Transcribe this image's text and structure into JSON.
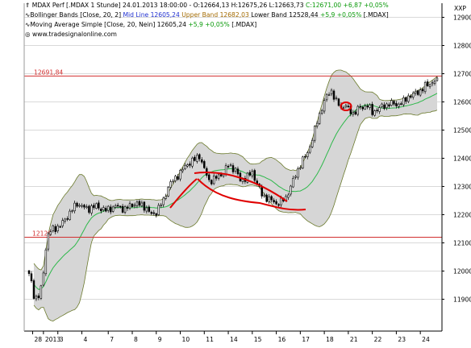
{
  "legend": {
    "line1": "MDAX Perf [.MDAX 1 Stunde] 24.01.2013 18:00:00 - O:12664,13 H:12675,26 L:12663,73 ",
    "line1_change": "C:12671,00 +6,87 +0,05%",
    "bb_prefix": "Bollinger Bands [Close, 20, 2] ",
    "bb_mid": "Mid Line 12605,24 ",
    "bb_upper": "Upper Band 12682,03 ",
    "bb_lower": "Lower Band 12528,44 ",
    "bb_change": "+5,9 +0,05% ",
    "bb_suffix": "[.MDAX]",
    "ma_prefix": "Moving Average Simple [Close, 20, Nein] 12605,24 ",
    "ma_change": "+5,9 +0,05% ",
    "ma_suffix": "[.MDAX]",
    "website": "www.tradesignalonline.com"
  },
  "axis_unit": "XXP",
  "colors": {
    "up_candle": "#ffffff",
    "down_candle": "#000000",
    "band_fill": "#d6d6d6",
    "band_line": "#6b7a2c",
    "ma_line": "#2db84a",
    "hline": "#d23030",
    "annotation": "#e00000",
    "grid": "#d9d9d9"
  },
  "chart_data": {
    "type": "candlestick",
    "y_ticks": [
      11900,
      12000,
      12100,
      12200,
      12300,
      12400,
      12500,
      12600,
      12700,
      12800,
      12900
    ],
    "ylim": [
      11787,
      12950
    ],
    "x_ticks": [
      {
        "label": "28",
        "pos": 1.5
      },
      {
        "label": "2013",
        "pos": 6
      },
      {
        "label": "3",
        "pos": 12
      },
      {
        "label": "4",
        "pos": 22
      },
      {
        "label": "7",
        "pos": 33
      },
      {
        "label": "8",
        "pos": 43
      },
      {
        "label": "9",
        "pos": 53
      },
      {
        "label": "10",
        "pos": 63
      },
      {
        "label": "11",
        "pos": 73
      },
      {
        "label": "14",
        "pos": 83
      },
      {
        "label": "15",
        "pos": 93
      },
      {
        "label": "16",
        "pos": 103
      },
      {
        "label": "17",
        "pos": 113
      },
      {
        "label": "18",
        "pos": 123
      },
      {
        "label": "21",
        "pos": 133
      },
      {
        "label": "22",
        "pos": 143
      },
      {
        "label": "23",
        "pos": 153
      },
      {
        "label": "24",
        "pos": 163
      }
    ],
    "bar_count": 171,
    "horizontal_lines": [
      {
        "label": "12691,84",
        "value": 12691.84
      },
      {
        "label": "12120",
        "value": 12120
      }
    ],
    "anchors": [
      [
        0,
        11985
      ],
      [
        1,
        11960
      ],
      [
        2,
        11915
      ],
      [
        3,
        11905
      ],
      [
        4,
        11910
      ],
      [
        5,
        11935
      ],
      [
        6,
        12000
      ],
      [
        7,
        12080
      ],
      [
        8,
        12130
      ],
      [
        10,
        12150
      ],
      [
        13,
        12160
      ],
      [
        16,
        12195
      ],
      [
        20,
        12240
      ],
      [
        24,
        12220
      ],
      [
        28,
        12230
      ],
      [
        32,
        12215
      ],
      [
        36,
        12230
      ],
      [
        40,
        12220
      ],
      [
        44,
        12240
      ],
      [
        48,
        12230
      ],
      [
        51,
        12200
      ],
      [
        53,
        12210
      ],
      [
        56,
        12250
      ],
      [
        58,
        12300
      ],
      [
        61,
        12330
      ],
      [
        64,
        12360
      ],
      [
        66,
        12380
      ],
      [
        69,
        12395
      ],
      [
        71,
        12410
      ],
      [
        73,
        12360
      ],
      [
        75,
        12320
      ],
      [
        78,
        12330
      ],
      [
        81,
        12350
      ],
      [
        83,
        12375
      ],
      [
        86,
        12360
      ],
      [
        88,
        12320
      ],
      [
        91,
        12335
      ],
      [
        93,
        12350
      ],
      [
        95,
        12310
      ],
      [
        97,
        12270
      ],
      [
        100,
        12255
      ],
      [
        103,
        12240
      ],
      [
        105,
        12245
      ],
      [
        107,
        12260
      ],
      [
        109,
        12300
      ],
      [
        111,
        12340
      ],
      [
        113,
        12380
      ],
      [
        116,
        12420
      ],
      [
        118,
        12470
      ],
      [
        120,
        12530
      ],
      [
        122,
        12580
      ],
      [
        124,
        12620
      ],
      [
        126,
        12640
      ],
      [
        128,
        12600
      ],
      [
        130,
        12580
      ],
      [
        132,
        12590
      ],
      [
        133,
        12570
      ],
      [
        135,
        12560
      ],
      [
        137,
        12575
      ],
      [
        139,
        12580
      ],
      [
        141,
        12590
      ],
      [
        143,
        12560
      ],
      [
        145,
        12575
      ],
      [
        148,
        12585
      ],
      [
        150,
        12595
      ],
      [
        153,
        12590
      ],
      [
        156,
        12600
      ],
      [
        158,
        12620
      ],
      [
        161,
        12630
      ],
      [
        163,
        12640
      ],
      [
        165,
        12655
      ],
      [
        167,
        12665
      ],
      [
        169,
        12675
      ],
      [
        170,
        12671
      ]
    ]
  }
}
